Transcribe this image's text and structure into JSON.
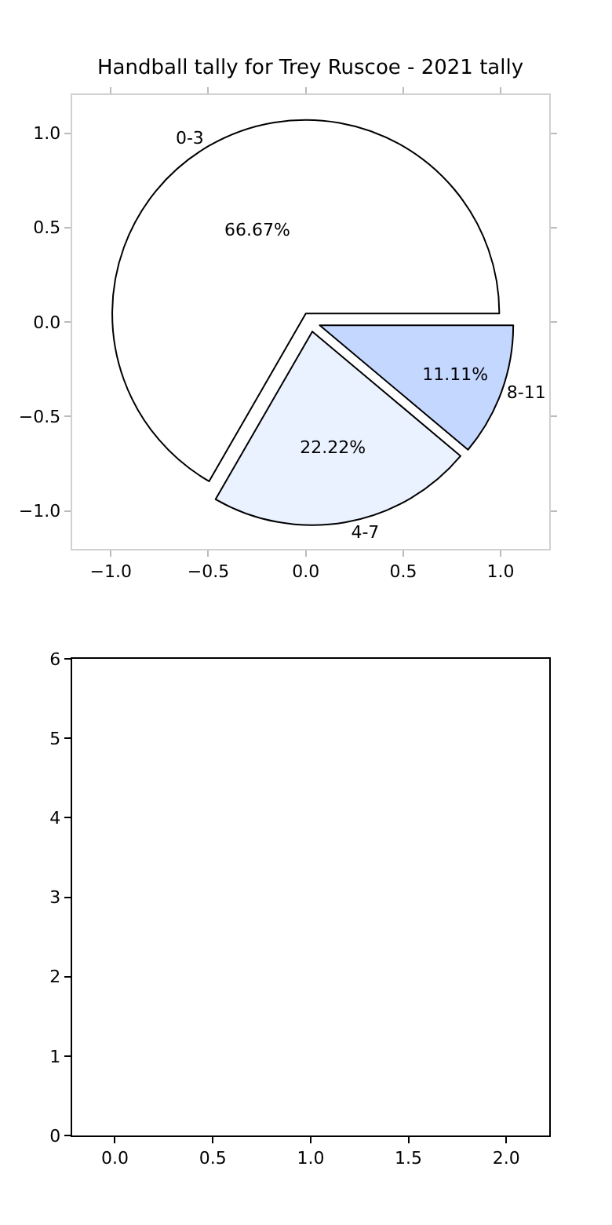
{
  "chart_data": [
    {
      "type": "pie",
      "title": "Handball tally for Trey Ruscoe - 2021 tally",
      "categories": [
        "0-3",
        "4-7",
        "8-11"
      ],
      "values": [
        66.67,
        22.22,
        11.11
      ],
      "colors": [
        "#ffffff",
        "#ebf2ff",
        "#c4d7ff"
      ],
      "value_labels": [
        "66.67%",
        "22.22%",
        "11.11%"
      ]
    },
    {
      "type": "scatter",
      "xlim": [
        -1.2,
        1.25
      ],
      "ylim": [
        -1.2,
        1.2
      ],
      "xticks": [
        {
          "value": -1.0,
          "label": "−1.0"
        },
        {
          "value": -0.5,
          "label": "−0.5"
        },
        {
          "value": 0.0,
          "label": "0.0"
        },
        {
          "value": 0.5,
          "label": "0.5"
        },
        {
          "value": 1.0,
          "label": "1.0"
        }
      ],
      "yticks": [
        {
          "value": -1.0,
          "label": "−1.0"
        },
        {
          "value": -0.5,
          "label": "−0.5"
        },
        {
          "value": 0.0,
          "label": "0.0"
        },
        {
          "value": 0.5,
          "label": "0.5"
        },
        {
          "value": 1.0,
          "label": "1.0"
        }
      ]
    },
    {
      "type": "scatter",
      "xlim": [
        -0.22,
        2.22
      ],
      "ylim": [
        0,
        6
      ],
      "xticks": [
        {
          "value": 0,
          "label": "0.0"
        },
        {
          "value": 0.5,
          "label": "0.5"
        },
        {
          "value": 1,
          "label": "1.0"
        },
        {
          "value": 1.5,
          "label": "1.5"
        },
        {
          "value": 2,
          "label": "2.0"
        }
      ],
      "yticks": [
        0,
        1,
        2,
        3,
        4,
        5,
        6
      ]
    }
  ]
}
